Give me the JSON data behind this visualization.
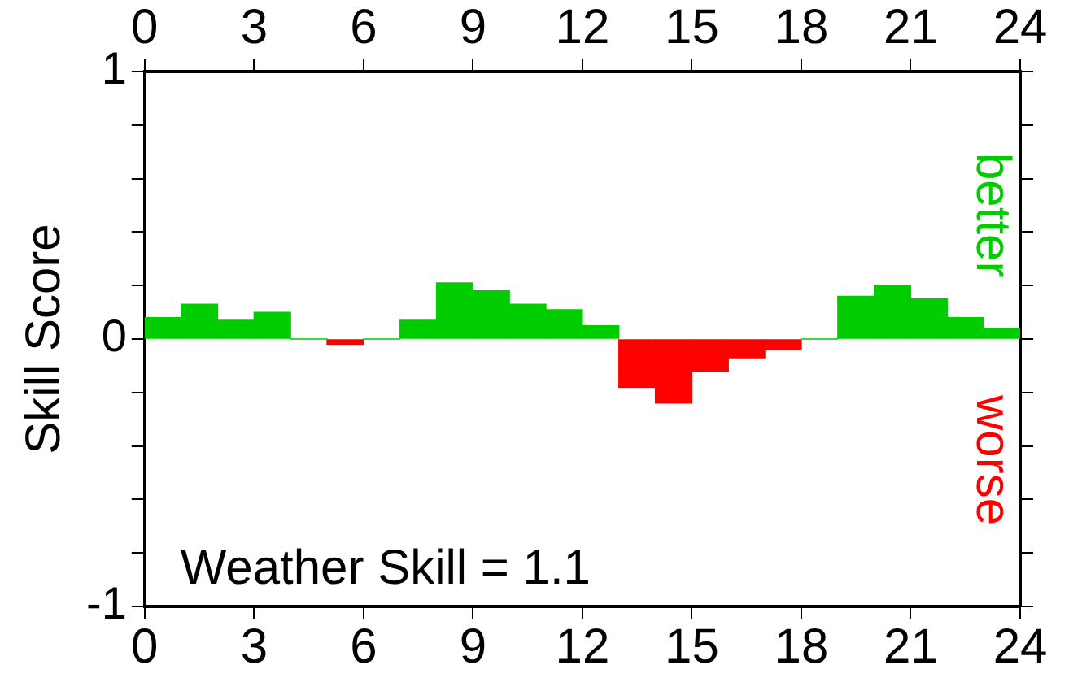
{
  "chart_data": {
    "type": "histogram",
    "ylabel": "Skill Score",
    "bins": [
      0,
      1,
      2,
      3,
      4,
      5,
      6,
      7,
      8,
      9,
      10,
      11,
      12,
      13,
      14,
      15,
      16,
      17,
      18,
      19,
      20,
      21,
      22,
      23,
      24
    ],
    "values": [
      0.08,
      0.13,
      0.07,
      0.1,
      0,
      -0.02,
      0,
      0.07,
      0.21,
      0.18,
      0.13,
      0.11,
      0.05,
      -0.18,
      -0.24,
      -0.12,
      -0.07,
      -0.04,
      0,
      0.16,
      0.2,
      0.15,
      0.08,
      0.04
    ],
    "colors": [
      "#00cc00",
      "#00cc00",
      "#00cc00",
      "#00cc00",
      "#00cc00",
      "#ff0000",
      "#00cc00",
      "#00cc00",
      "#00cc00",
      "#00cc00",
      "#00cc00",
      "#00cc00",
      "#00cc00",
      "#ff0000",
      "#ff0000",
      "#ff0000",
      "#ff0000",
      "#ff0000",
      "#00cc00",
      "#00cc00",
      "#00cc00",
      "#00cc00",
      "#00cc00",
      "#00cc00"
    ],
    "xlim": [
      0,
      24
    ],
    "xticks": [
      0,
      3,
      6,
      9,
      12,
      15,
      18,
      21,
      24
    ],
    "x2lim": [
      0,
      24
    ],
    "x2ticks": [
      0,
      3,
      6,
      9,
      12,
      15,
      18,
      21,
      24
    ],
    "ylim": [
      -1,
      1
    ],
    "yticks": [
      -1,
      {
        "value": -0.8,
        "label": null
      },
      {
        "value": -0.6,
        "label": null
      },
      {
        "value": -0.4,
        "label": null
      },
      {
        "value": -0.2,
        "label": null
      },
      0,
      {
        "value": 0.2,
        "label": null
      },
      {
        "value": 0.4,
        "label": null
      },
      {
        "value": 0.6,
        "label": null
      },
      {
        "value": 0.8,
        "label": null
      },
      1
    ],
    "grid": false,
    "legend": false,
    "annotations": [
      "Weather Skill = 1.1",
      "better",
      "worse"
    ]
  }
}
